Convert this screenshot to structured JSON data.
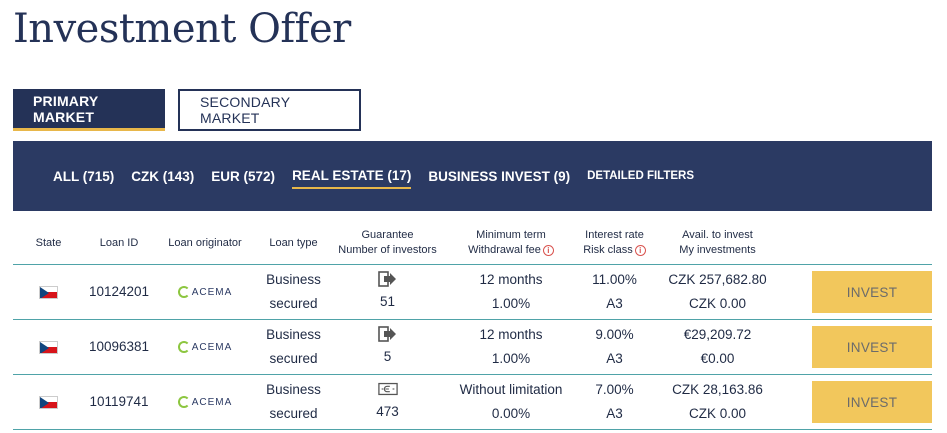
{
  "page": {
    "title": "Investment Offer"
  },
  "market_tabs": [
    {
      "label": "PRIMARY MARKET",
      "active": true
    },
    {
      "label": "SECONDARY MARKET",
      "active": false
    }
  ],
  "filters": [
    {
      "label": "ALL (715)"
    },
    {
      "label": "CZK (143)"
    },
    {
      "label": "EUR (572)"
    },
    {
      "label": "REAL ESTATE (17)",
      "active": true
    },
    {
      "label": "BUSINESS INVEST (9)"
    },
    {
      "label": "DETAILED FILTERS"
    }
  ],
  "columns": {
    "state": "State",
    "loan_id": "Loan ID",
    "originator": "Loan originator",
    "loan_type": "Loan type",
    "guarantee": "Guarantee",
    "investors": "Number of investors",
    "min_term": "Minimum term",
    "withdrawal_fee": "Withdrawal fee",
    "interest_rate": "Interest rate",
    "risk_class": "Risk class",
    "avail": "Avail. to invest",
    "my_investments": "My investments"
  },
  "rows": [
    {
      "flag_icon": "czech-flag-icon",
      "loan_id": "10124201",
      "originator": "ACEMA",
      "type_line1": "Business",
      "type_line2": "secured",
      "guarantee_icon": "buyback-arrow-icon",
      "investors": "51",
      "term": "12 months",
      "fee": "1.00%",
      "rate": "11.00%",
      "risk": "A3",
      "avail": "CZK 257,682.80",
      "mine": "CZK 0.00",
      "button": "INVEST"
    },
    {
      "flag_icon": "czech-flag-icon",
      "loan_id": "10096381",
      "originator": "ACEMA",
      "type_line1": "Business",
      "type_line2": "secured",
      "guarantee_icon": "buyback-arrow-icon",
      "investors": "5",
      "term": "12 months",
      "fee": "1.00%",
      "rate": "9.00%",
      "risk": "A3",
      "avail": "€29,209.72",
      "mine": "€0.00",
      "button": "INVEST"
    },
    {
      "flag_icon": "czech-flag-icon",
      "loan_id": "10119741",
      "originator": "ACEMA",
      "type_line1": "Business",
      "type_line2": "secured",
      "guarantee_icon": "banknote-icon",
      "investors": "473",
      "term": "Without limitation",
      "fee": "0.00%",
      "rate": "7.00%",
      "risk": "A3",
      "avail": "CZK 28,163.86",
      "mine": "CZK 0.00",
      "button": "INVEST"
    }
  ],
  "colors": {
    "navy": "#243257",
    "filter_bar": "#2b3a63",
    "accent_gold": "#e8b74a",
    "invest_button": "#f2c75c",
    "row_divider": "#4fa3a8"
  }
}
